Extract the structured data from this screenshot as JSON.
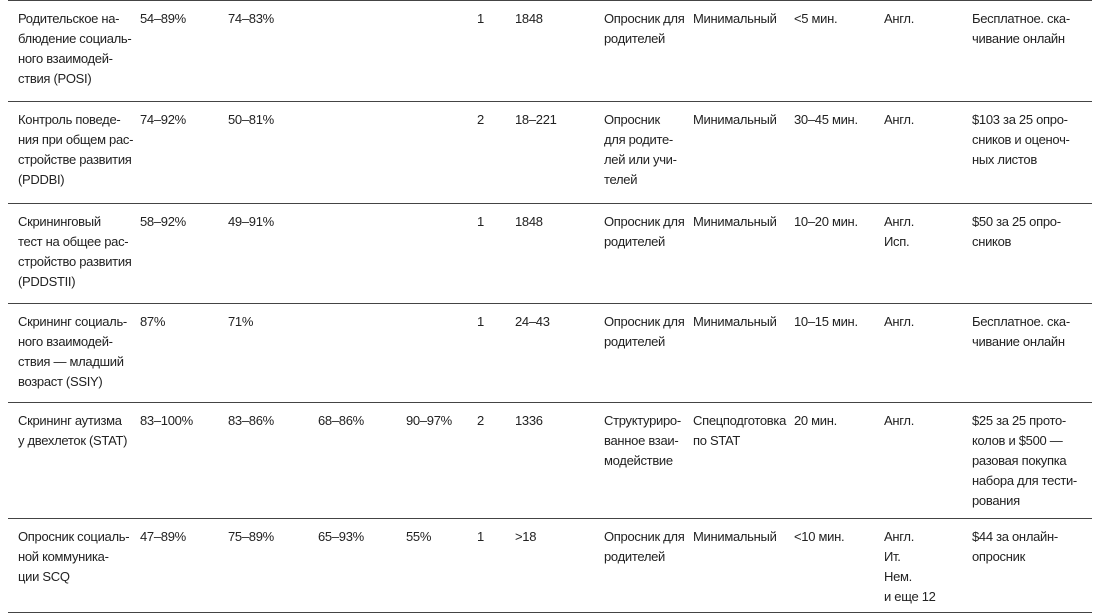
{
  "table": {
    "rows": [
      [
        [
          "Родительское на-",
          "блюдение социаль-",
          "ного взаимодей-",
          "ствия (POSI)"
        ],
        [
          "54–89%"
        ],
        [
          "74–83%"
        ],
        null,
        null,
        [
          "1"
        ],
        [
          "1848"
        ],
        [
          "Опросник для",
          "родителей"
        ],
        [
          "Минимальный"
        ],
        [
          "<5 мин."
        ],
        [
          "Англ."
        ],
        [
          "Бесплатное. ска-",
          "чивание онлайн"
        ]
      ],
      [
        [
          "Контроль поведе-",
          "ния при общем рас-",
          "стройстве развития",
          "(PDDBI)"
        ],
        [
          "74–92%"
        ],
        [
          "50–81%"
        ],
        null,
        null,
        [
          "2"
        ],
        [
          "18–221"
        ],
        [
          "Опросник",
          "для родите-",
          "лей или учи-",
          "телей"
        ],
        [
          "Минимальный"
        ],
        [
          "30–45 мин."
        ],
        [
          "Англ."
        ],
        [
          "$103 за 25 опро-",
          "сников и оценоч-",
          "ных листов"
        ]
      ],
      [
        [
          "Скрининговый",
          "тест на общее рас-",
          "стройство развития",
          "(PDDSTII)"
        ],
        [
          "58–92%"
        ],
        [
          "49–91%"
        ],
        null,
        null,
        [
          "1"
        ],
        [
          "1848"
        ],
        [
          "Опросник для",
          "родителей"
        ],
        [
          "Минимальный"
        ],
        [
          "10–20 мин."
        ],
        [
          "Англ.",
          "Исп."
        ],
        [
          "$50 за 25 опро-",
          "сников"
        ]
      ],
      [
        [
          "Скрининг социаль-",
          "ного взаимодей-",
          "ствия — младший",
          "возраст (SSIY)"
        ],
        [
          "87%"
        ],
        [
          "71%"
        ],
        null,
        null,
        [
          "1"
        ],
        [
          "24–43"
        ],
        [
          "Опросник для",
          "родителей"
        ],
        [
          "Минимальный"
        ],
        [
          "10–15 мин."
        ],
        [
          "Англ."
        ],
        [
          "Бесплатное. ска-",
          "чивание онлайн"
        ]
      ],
      [
        [
          "Скрининг аутизма",
          "у двехлеток (STAT)"
        ],
        [
          "83–100%"
        ],
        [
          "83–86%"
        ],
        [
          "68–86%"
        ],
        [
          "90–97%"
        ],
        [
          "2"
        ],
        [
          "1336"
        ],
        [
          "Структуриро-",
          "ванное взаи-",
          "модействие"
        ],
        [
          "Спецподготовка",
          "по STAT"
        ],
        [
          "20 мин."
        ],
        [
          "Англ."
        ],
        [
          "$25 за 25 прото-",
          "колов и $500 —",
          "разовая покупка",
          "набора для тести-",
          "рования"
        ]
      ],
      [
        [
          "Опросник социаль-",
          "ной коммуника-",
          "ции SCQ"
        ],
        [
          "47–89%"
        ],
        [
          "75–89%"
        ],
        [
          "65–93%"
        ],
        [
          "55%"
        ],
        [
          "1"
        ],
        [
          ">18"
        ],
        [
          "Опросник для",
          "родителей"
        ],
        [
          "Минимальный"
        ],
        [
          "<10 мин."
        ],
        [
          "Англ.",
          "Ит.",
          "Нем.",
          "и еще 12"
        ],
        [
          "$44 за онлайн-",
          "опросник"
        ]
      ]
    ]
  }
}
